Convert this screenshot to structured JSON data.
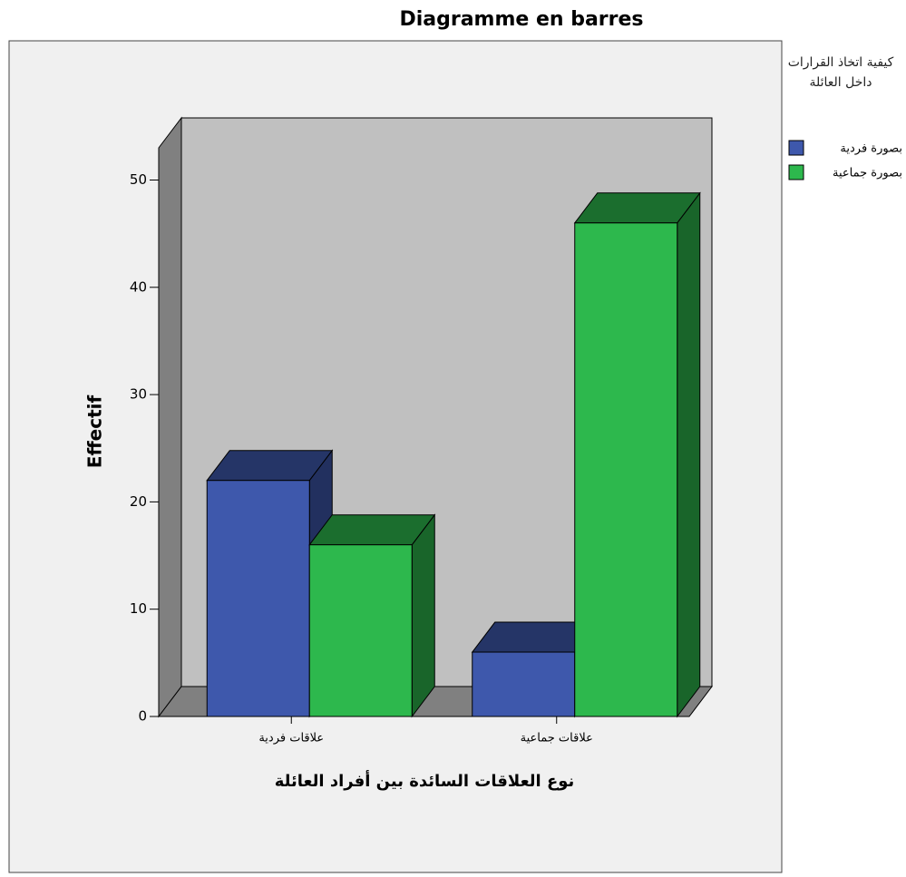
{
  "chart_data": {
    "type": "bar3d",
    "title": "Diagramme en barres",
    "x_label": "نوع العلاقات السائدة بين أفراد العائلة",
    "y_label": "Effectif",
    "categories": [
      "علاقات فردية",
      "علاقات جماعية"
    ],
    "legend_title": "كيفية اتخاذ القرارات داخل العائلة",
    "series": [
      {
        "name": "بصورة فردية",
        "color": "#3e58ac",
        "values": [
          22,
          6
        ]
      },
      {
        "name": "بصورة جماعية",
        "color": "#2db84d",
        "values": [
          16,
          46
        ]
      }
    ],
    "ylim": [
      0,
      53
    ],
    "yticks": [
      0,
      10,
      20,
      30,
      40,
      50
    ],
    "legend": "right"
  }
}
